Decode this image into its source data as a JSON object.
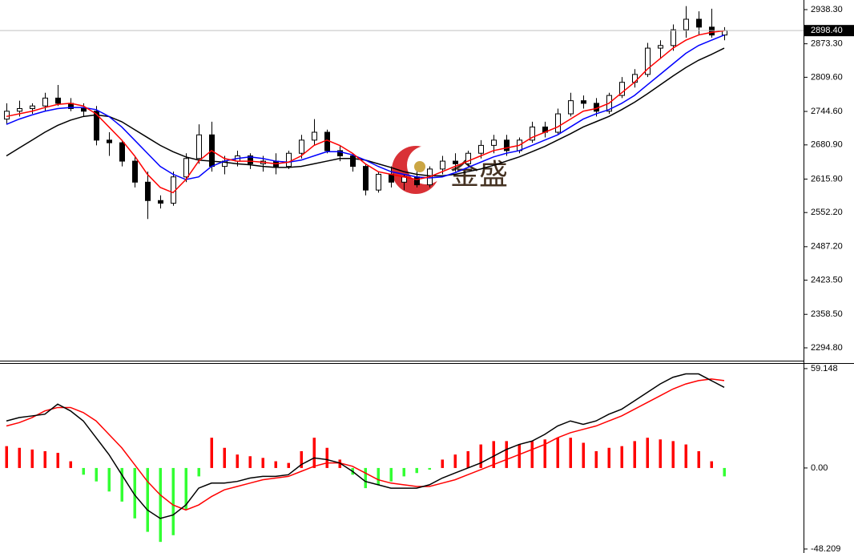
{
  "watermark": "金盛",
  "chart_data": [
    {
      "type": "candlestick",
      "ylim": [
        2270.4,
        2956.6
      ],
      "yticks": [
        {
          "value": 2938.3,
          "label": "2938.30"
        },
        {
          "value": 2873.3,
          "label": "2873.30"
        },
        {
          "value": 2809.6,
          "label": "2809.60"
        },
        {
          "value": 2744.6,
          "label": "2744.60"
        },
        {
          "value": 2680.9,
          "label": "2680.90"
        },
        {
          "value": 2615.9,
          "label": "2615.90"
        },
        {
          "value": 2552.2,
          "label": "2552.20"
        },
        {
          "value": 2487.2,
          "label": "2487.20"
        },
        {
          "value": 2423.5,
          "label": "2423.50"
        },
        {
          "value": 2358.5,
          "label": "2358.50"
        },
        {
          "value": 2294.8,
          "label": "2294.80"
        }
      ],
      "last_price": {
        "value": 2898.4,
        "label": "2898.40"
      },
      "up_color": "#ffffff",
      "down_color": "#000000",
      "outline_color": "#000000",
      "open": [
        2730,
        2745,
        2750,
        2755,
        2770,
        2760,
        2750,
        2745,
        2690,
        2685,
        2650,
        2610,
        2575,
        2570,
        2620,
        2655,
        2700,
        2640,
        2650,
        2660,
        2645,
        2650,
        2640,
        2665,
        2690,
        2705,
        2670,
        2660,
        2640,
        2595,
        2625,
        2610,
        2620,
        2605,
        2635,
        2650,
        2645,
        2665,
        2680,
        2690,
        2670,
        2690,
        2715,
        2705,
        2740,
        2765,
        2760,
        2745,
        2775,
        2800,
        2815,
        2865,
        2870,
        2900,
        2920,
        2905,
        2890
      ],
      "high": [
        2760,
        2765,
        2760,
        2780,
        2795,
        2770,
        2760,
        2755,
        2705,
        2690,
        2660,
        2630,
        2585,
        2630,
        2665,
        2720,
        2725,
        2660,
        2670,
        2665,
        2660,
        2665,
        2670,
        2700,
        2730,
        2710,
        2680,
        2665,
        2645,
        2630,
        2640,
        2625,
        2630,
        2640,
        2660,
        2665,
        2670,
        2690,
        2700,
        2700,
        2695,
        2725,
        2725,
        2750,
        2780,
        2775,
        2770,
        2780,
        2810,
        2825,
        2875,
        2880,
        2910,
        2945,
        2935,
        2940,
        2905
      ],
      "low": [
        2720,
        2735,
        2740,
        2745,
        2755,
        2745,
        2735,
        2680,
        2660,
        2640,
        2600,
        2540,
        2560,
        2565,
        2610,
        2645,
        2630,
        2625,
        2640,
        2635,
        2630,
        2625,
        2635,
        2655,
        2680,
        2665,
        2650,
        2630,
        2585,
        2590,
        2600,
        2595,
        2600,
        2600,
        2625,
        2630,
        2640,
        2655,
        2665,
        2660,
        2665,
        2685,
        2695,
        2700,
        2735,
        2750,
        2735,
        2740,
        2770,
        2790,
        2810,
        2845,
        2860,
        2885,
        2890,
        2885,
        2880
      ],
      "close": [
        2745,
        2750,
        2755,
        2770,
        2760,
        2750,
        2745,
        2690,
        2685,
        2650,
        2610,
        2575,
        2570,
        2620,
        2655,
        2700,
        2640,
        2650,
        2660,
        2645,
        2650,
        2640,
        2665,
        2690,
        2705,
        2670,
        2660,
        2640,
        2595,
        2625,
        2610,
        2620,
        2605,
        2635,
        2650,
        2645,
        2665,
        2680,
        2690,
        2670,
        2690,
        2715,
        2705,
        2740,
        2765,
        2760,
        2745,
        2775,
        2800,
        2815,
        2865,
        2870,
        2900,
        2920,
        2905,
        2890,
        2898.4
      ],
      "moving_averages": [
        {
          "color": "#000000",
          "values": [
            2660,
            2675,
            2690,
            2705,
            2718,
            2728,
            2735,
            2738,
            2735,
            2725,
            2710,
            2695,
            2680,
            2668,
            2658,
            2652,
            2650,
            2648,
            2645,
            2643,
            2640,
            2638,
            2638,
            2640,
            2645,
            2650,
            2655,
            2655,
            2652,
            2645,
            2638,
            2630,
            2625,
            2622,
            2622,
            2625,
            2630,
            2635,
            2642,
            2650,
            2658,
            2668,
            2678,
            2690,
            2702,
            2715,
            2725,
            2735,
            2748,
            2762,
            2778,
            2795,
            2812,
            2828,
            2842,
            2853,
            2865
          ]
        },
        {
          "color": "#0000ff",
          "values": [
            2720,
            2730,
            2738,
            2745,
            2750,
            2752,
            2752,
            2748,
            2735,
            2715,
            2690,
            2665,
            2640,
            2625,
            2615,
            2620,
            2640,
            2650,
            2655,
            2658,
            2655,
            2650,
            2648,
            2652,
            2660,
            2668,
            2668,
            2662,
            2652,
            2640,
            2630,
            2625,
            2620,
            2618,
            2620,
            2628,
            2638,
            2648,
            2658,
            2665,
            2670,
            2680,
            2690,
            2700,
            2715,
            2730,
            2740,
            2748,
            2760,
            2775,
            2795,
            2815,
            2835,
            2855,
            2870,
            2880,
            2890
          ]
        },
        {
          "color": "#ff0000",
          "values": [
            2735,
            2740,
            2745,
            2752,
            2758,
            2760,
            2755,
            2740,
            2715,
            2690,
            2660,
            2625,
            2600,
            2590,
            2615,
            2650,
            2670,
            2655,
            2650,
            2650,
            2648,
            2645,
            2648,
            2660,
            2680,
            2690,
            2680,
            2665,
            2645,
            2630,
            2625,
            2620,
            2615,
            2620,
            2630,
            2640,
            2650,
            2660,
            2670,
            2675,
            2680,
            2695,
            2705,
            2715,
            2730,
            2745,
            2750,
            2760,
            2780,
            2800,
            2825,
            2845,
            2865,
            2880,
            2890,
            2895,
            2898
          ]
        }
      ]
    },
    {
      "type": "macd",
      "ylim": [
        -50.6,
        61.5
      ],
      "yticks": [
        59.148,
        {
          "value": 0,
          "label": "0.00"
        },
        -48.209
      ],
      "bar_colors": {
        "positive": "#ff0000",
        "negative": "#33ff33"
      },
      "histogram": [
        13,
        12,
        11,
        10,
        9,
        4,
        -4,
        -8,
        -14,
        -20,
        -30,
        -38,
        -44,
        -40,
        -25,
        -5,
        18,
        12,
        8,
        7,
        6,
        4,
        3,
        10,
        18,
        12,
        5,
        -4,
        -12,
        -10,
        -8,
        -5,
        -3,
        -1,
        5,
        8,
        10,
        14,
        16,
        16,
        14,
        16,
        17,
        18,
        18,
        15,
        10,
        12,
        13,
        16,
        18,
        17,
        16,
        14,
        10,
        4,
        -5
      ],
      "macd_line": {
        "color": "#000000",
        "values": [
          28,
          30,
          31,
          32,
          38,
          34,
          28,
          18,
          8,
          -4,
          -16,
          -25,
          -30,
          -28,
          -22,
          -12,
          -9,
          -9,
          -8,
          -6,
          -5,
          -5,
          -4,
          2,
          6,
          5,
          3,
          -2,
          -8,
          -10,
          -12,
          -12,
          -12,
          -10,
          -6,
          -3,
          0,
          3,
          7,
          11,
          14,
          16,
          20,
          25,
          28,
          26,
          28,
          32,
          35,
          40,
          45,
          50,
          54,
          56,
          56,
          52,
          48
        ]
      },
      "signal_line": {
        "color": "#ff0000",
        "values": [
          25,
          27,
          30,
          34,
          36,
          36,
          33,
          28,
          20,
          12,
          2,
          -8,
          -16,
          -22,
          -25,
          -22,
          -17,
          -13,
          -11,
          -9,
          -7,
          -6,
          -5,
          -2,
          1,
          3,
          3,
          1,
          -3,
          -7,
          -9,
          -10,
          -11,
          -11,
          -9,
          -7,
          -4,
          -1,
          2,
          5,
          8,
          11,
          14,
          18,
          21,
          23,
          25,
          28,
          31,
          35,
          39,
          43,
          47,
          50,
          52,
          53,
          52
        ]
      }
    }
  ]
}
